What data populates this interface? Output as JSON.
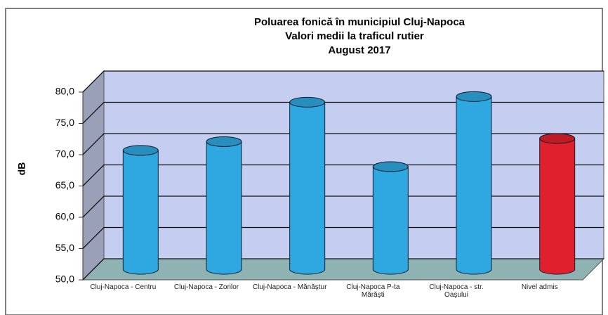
{
  "chart_data": {
    "type": "bar3d",
    "title": [
      "Poluarea fonică în municipiul Cluj-Napoca",
      "Valori medii la traficul rutier",
      "August 2017"
    ],
    "y_label": "dB",
    "categories": [
      "Cluj-Napoca - Centru",
      "Cluj-Napoca - Zorilor",
      "Cluj-Napoca - Mănăştur",
      "Cluj-Napoca P-ta Mărăşti",
      "Cluj-Napoca - str. Oaşului",
      "Nivel admis"
    ],
    "values": [
      69.0,
      70.4,
      76.7,
      66.4,
      77.6,
      70.9
    ],
    "colors": [
      "#2fa7e0",
      "#2fa7e0",
      "#2fa7e0",
      "#2fa7e0",
      "#2fa7e0",
      "#e0202c"
    ],
    "ylim": [
      50,
      80
    ],
    "yticks": [
      {
        "value": 50,
        "label": "50,0"
      },
      {
        "value": 55,
        "label": "55,0"
      },
      {
        "value": 60,
        "label": "60,0"
      },
      {
        "value": 65,
        "label": "65,0"
      },
      {
        "value": 70,
        "label": "70,0"
      },
      {
        "value": 75,
        "label": "75,0"
      },
      {
        "value": 80,
        "label": "80,0"
      }
    ],
    "grid": true
  }
}
